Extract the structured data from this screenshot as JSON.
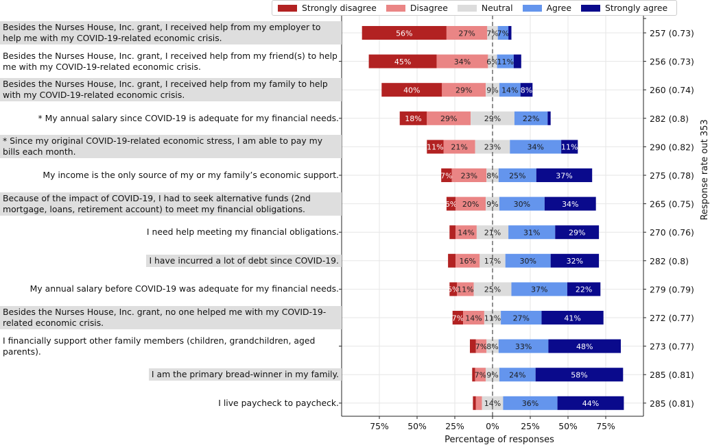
{
  "chart_data": {
    "type": "bar",
    "orientation": "horizontal",
    "stacked": "diverging",
    "xlabel": "Percentage of responses",
    "ylabel_right": "Response rate out 353",
    "xlim": [
      -100,
      100
    ],
    "xticks": [
      -75,
      -50,
      -25,
      0,
      25,
      50,
      75
    ],
    "xtick_labels": [
      "75%",
      "50%",
      "25%",
      "0%",
      "25%",
      "50%",
      "75%"
    ],
    "grid": true,
    "legend_position": "top",
    "series": [
      {
        "name": "Strongly disagree",
        "color": "#b22222"
      },
      {
        "name": "Disagree",
        "color": "#ea8585"
      },
      {
        "name": "Neutral",
        "color": "#dcdcdc"
      },
      {
        "name": "Agree",
        "color": "#6495ed"
      },
      {
        "name": "Strongly agree",
        "color": "#0a0a8c"
      }
    ],
    "items": [
      {
        "label": "Besides the Nurses House, Inc. grant, I received help from my employer to help me with my COVID-19-related economic crisis.",
        "shaded": true,
        "wrap": true,
        "values": [
          56,
          27,
          7,
          7,
          2
        ],
        "value_labels": [
          "56%",
          "27%",
          "7%",
          "7%",
          ""
        ],
        "response": "257 (0.73)"
      },
      {
        "label": "Besides the Nurses House, Inc. grant, I received help from my friend(s) to help me with my COVID-19-related economic crisis.",
        "shaded": false,
        "wrap": true,
        "values": [
          45,
          34,
          6,
          11,
          5
        ],
        "value_labels": [
          "45%",
          "34%",
          "6%",
          "11%",
          ""
        ],
        "response": "256 (0.73)"
      },
      {
        "label": "Besides the Nurses House, Inc. grant, I received help from my family to help with my COVID-19-related economic crisis.",
        "shaded": true,
        "wrap": true,
        "values": [
          40,
          29,
          9,
          14,
          8
        ],
        "value_labels": [
          "40%",
          "29%",
          "9%",
          "14%",
          "8%"
        ],
        "response": "260 (0.74)"
      },
      {
        "label": "* My annual salary since COVID-19 is adequate for my financial needs.",
        "shaded": false,
        "wrap": false,
        "values": [
          18,
          29,
          29,
          22,
          2
        ],
        "value_labels": [
          "18%",
          "29%",
          "29%",
          "22%",
          ""
        ],
        "response": "282 (0.8)"
      },
      {
        "label": "* Since my original COVID-19-related economic stress, I am able to pay my bills each month.",
        "shaded": true,
        "wrap": true,
        "values": [
          11,
          21,
          23,
          34,
          11
        ],
        "value_labels": [
          "11%",
          "21%",
          "23%",
          "34%",
          "11%"
        ],
        "response": "290 (0.82)"
      },
      {
        "label": "My income is the only source of my or my family’s economic support.",
        "shaded": false,
        "wrap": false,
        "values": [
          7,
          23,
          8,
          25,
          37
        ],
        "value_labels": [
          "7%",
          "23%",
          "8%",
          "25%",
          "37%"
        ],
        "response": "275 (0.78)"
      },
      {
        "label": "Because of the impact of COVID-19, I had to seek alternative funds (2nd mortgage, loans, retirement account) to meet my financial obligations.",
        "shaded": true,
        "wrap": true,
        "values": [
          6,
          20,
          9,
          30,
          34
        ],
        "value_labels": [
          "6%",
          "20%",
          "9%",
          "30%",
          "34%"
        ],
        "response": "265 (0.75)"
      },
      {
        "label": "I need help meeting my financial obligations.",
        "shaded": false,
        "wrap": false,
        "values": [
          4,
          14,
          21,
          31,
          29
        ],
        "value_labels": [
          "",
          "14%",
          "21%",
          "31%",
          "29%"
        ],
        "response": "270 (0.76)"
      },
      {
        "label": "I have incurred a lot of debt since COVID-19.",
        "shaded": true,
        "wrap": false,
        "values": [
          5,
          16,
          17,
          30,
          32
        ],
        "value_labels": [
          "",
          "16%",
          "17%",
          "30%",
          "32%"
        ],
        "response": "282 (0.8)"
      },
      {
        "label": "My annual salary before COVID-19 was adequate for my financial needs.",
        "shaded": false,
        "wrap": false,
        "values": [
          5,
          11,
          25,
          37,
          22
        ],
        "value_labels": [
          "5%",
          "11%",
          "25%",
          "37%",
          "22%"
        ],
        "response": "279 (0.79)"
      },
      {
        "label": "Besides the Nurses House, Inc. grant, no one helped me with my COVID-19-related economic crisis.",
        "shaded": true,
        "wrap": true,
        "values": [
          7,
          14,
          11,
          27,
          41
        ],
        "value_labels": [
          "7%",
          "14%",
          "11%",
          "27%",
          "41%"
        ],
        "response": "272 (0.77)"
      },
      {
        "label": "I financially support other family members (children, grandchildren, aged parents).",
        "shaded": false,
        "wrap": true,
        "values": [
          4,
          7,
          8,
          33,
          48
        ],
        "value_labels": [
          "",
          "7%",
          "8%",
          "33%",
          "48%"
        ],
        "response": "273 (0.77)"
      },
      {
        "label": "I am the primary bread-winner in my family.",
        "shaded": true,
        "wrap": false,
        "values": [
          2,
          7,
          9,
          24,
          58
        ],
        "value_labels": [
          "",
          "7%",
          "9%",
          "24%",
          "58%"
        ],
        "response": "285 (0.81)"
      },
      {
        "label": "I live paycheck to paycheck.",
        "shaded": false,
        "wrap": false,
        "values": [
          2,
          4,
          14,
          36,
          44
        ],
        "value_labels": [
          "",
          "",
          "14%",
          "36%",
          "44%"
        ],
        "response": "285 (0.81)"
      }
    ]
  }
}
